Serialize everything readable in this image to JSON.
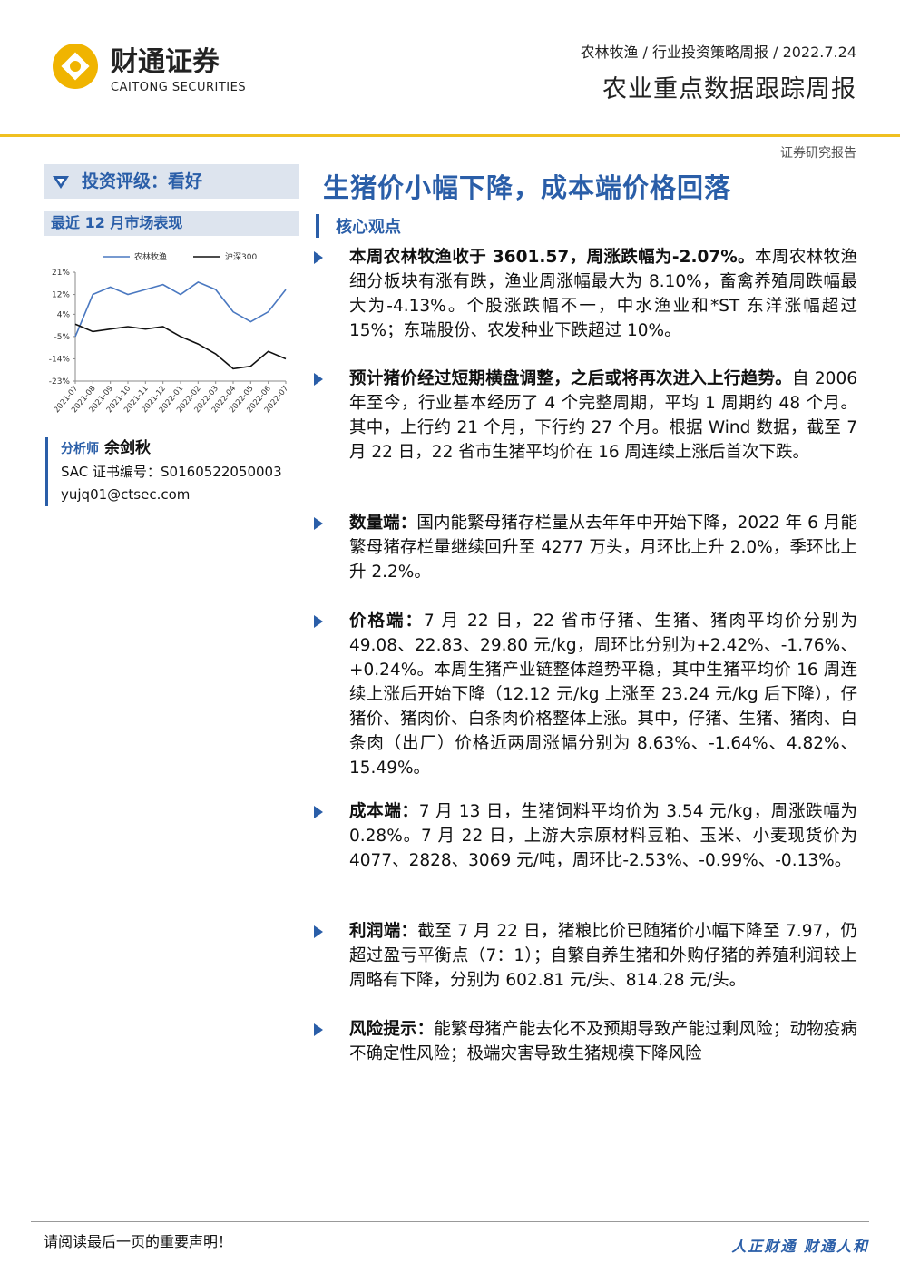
{
  "header": {
    "logo_cn": "财通证券",
    "logo_en": "CAITONG SECURITIES",
    "breadcrumb": "农林牧渔 / 行业投资策略周报 / 2022.7.24",
    "title": "农业重点数据跟踪周报",
    "report_type": "证券研究报告"
  },
  "sidebar": {
    "rating": "投资评级：看好",
    "market_title": "最近 12 月市场表现",
    "analyst": {
      "role": "分析师",
      "name": "余剑秋",
      "sac": "SAC 证书编号：S0160522050003",
      "email": "yujq01@ctsec.com"
    }
  },
  "chart_data": {
    "type": "line",
    "categories": [
      "2021-07",
      "2021-08",
      "2021-09",
      "2021-10",
      "2021-11",
      "2021-12",
      "2022-01",
      "2022-02",
      "2022-03",
      "2022-04",
      "2022-05",
      "2022-06",
      "2022-07"
    ],
    "series": [
      {
        "name": "农林牧渔",
        "color": "#4a78c0",
        "values": [
          -5,
          12,
          15,
          12,
          14,
          16,
          12,
          17,
          14,
          5,
          1,
          5,
          14
        ]
      },
      {
        "name": "沪深300",
        "color": "#111111",
        "values": [
          0,
          -3,
          -2,
          -1,
          -2,
          -1,
          -5,
          -8,
          -12,
          -18,
          -17,
          -11,
          -14
        ]
      }
    ],
    "ylim": [
      -23,
      21
    ],
    "yticks": [
      {
        "value": 21,
        "label": "21%"
      },
      {
        "value": 12,
        "label": "12%"
      },
      {
        "value": 4,
        "label": "4%"
      },
      {
        "value": -5,
        "label": "-5%"
      },
      {
        "value": -14,
        "label": "-14%"
      },
      {
        "value": -23,
        "label": "-23%"
      }
    ]
  },
  "main": {
    "headline": "生猪价小幅下降，成本端价格回落",
    "section": "核心观点",
    "bullets": [
      {
        "lead": "本周农林牧渔收于 3601.57，周涨跌幅为-2.07%。",
        "text": "本周农林牧渔细分板块有涨有跌，渔业周涨幅最大为 8.10%，畜禽养殖周跌幅最大为-4.13%。个股涨跌幅不一，中水渔业和*ST 东洋涨幅超过 15%；东瑞股份、农发种业下跌超过 10%。"
      },
      {
        "lead": "预计猪价经过短期横盘调整，之后或将再次进入上行趋势。",
        "text": "自 2006 年至今，行业基本经历了 4 个完整周期，平均 1 周期约 48 个月。其中，上行约 21 个月，下行约 27 个月。根据 Wind 数据，截至 7 月 22 日，22 省市生猪平均价在 16 周连续上涨后首次下跌。"
      },
      {
        "lead": "数量端：",
        "text": "国内能繁母猪存栏量从去年年中开始下降，2022 年 6 月能繁母猪存栏量继续回升至 4277 万头，月环比上升 2.0%，季环比上升 2.2%。"
      },
      {
        "lead": "价格端：",
        "text": "7 月 22 日，22 省市仔猪、生猪、猪肉平均价分别为 49.08、22.83、29.80 元/kg，周环比分别为+2.42%、-1.76%、+0.24%。本周生猪产业链整体趋势平稳，其中生猪平均价 16 周连续上涨后开始下降（12.12 元/kg 上涨至 23.24 元/kg 后下降），仔猪价、猪肉价、白条肉价格整体上涨。其中，仔猪、生猪、猪肉、白条肉（出厂）价格近两周涨幅分别为 8.63%、-1.64%、4.82%、15.49%。"
      },
      {
        "lead": "成本端：",
        "text": "7 月 13 日，生猪饲料平均价为 3.54 元/kg，周涨跌幅为 0.28%。7 月 22 日，上游大宗原材料豆粕、玉米、小麦现货价为 4077、2828、3069 元/吨，周环比-2.53%、-0.99%、-0.13%。"
      },
      {
        "lead": "利润端：",
        "text": "截至 7 月 22 日，猪粮比价已随猪价小幅下降至 7.97，仍超过盈亏平衡点（7：1）；自繁自养生猪和外购仔猪的养殖利润较上周略有下降，分别为 602.81 元/头、814.28 元/头。"
      },
      {
        "lead": "风险提示：",
        "text": "能繁母猪产能去化不及预期导致产能过剩风险；动物疫病不确定性风险；极端灾害导致生猪规模下降风险"
      }
    ]
  },
  "footer": {
    "notice": "请阅读最后一页的重要声明！",
    "slogan": "人正财通  财通人和"
  }
}
